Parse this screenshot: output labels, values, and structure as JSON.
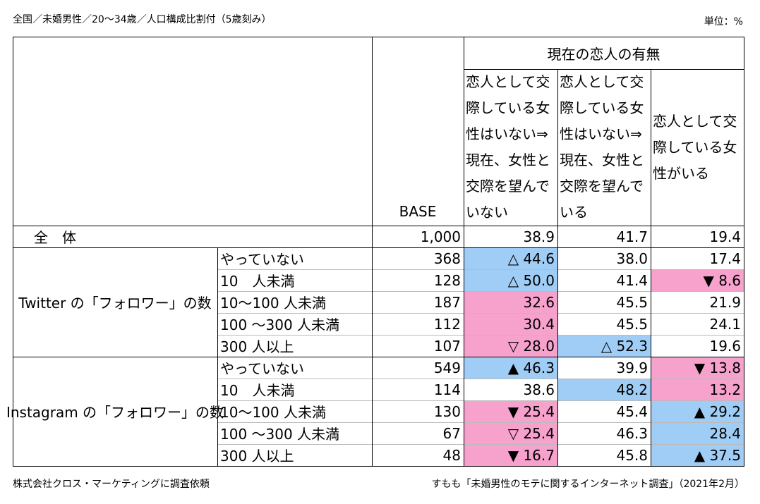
{
  "header": {
    "left": "全国／未婚男性／20～34歳／人口構成比割付（5歳刻み）",
    "right": "単位：%"
  },
  "table": {
    "group_header": "現在の恋人の有無",
    "columns": [
      "BASE",
      "恋人として交際している女性はいない⇒現在、女性と交際を望んでいない",
      "恋人として交際している女性はいない⇒現在、女性と交際を望んでいる",
      "恋人として交際している女性がいる"
    ],
    "total": {
      "label": "全　体",
      "base": "1,000",
      "cells": [
        {
          "text": "38.9"
        },
        {
          "text": "41.7"
        },
        {
          "text": "19.4"
        }
      ]
    },
    "groups": [
      {
        "label": "Twitter の「フォロワー」の数",
        "rows": [
          {
            "label": "やっていない",
            "base": "368",
            "cells": [
              {
                "text": "△ 44.6",
                "fill": "#a0cdf5"
              },
              {
                "text": "38.0"
              },
              {
                "text": "17.4"
              }
            ]
          },
          {
            "label": "10　人未満",
            "base": "128",
            "cells": [
              {
                "text": "△ 50.0",
                "fill": "#a0cdf5"
              },
              {
                "text": "41.4"
              },
              {
                "text": "▼ 8.6",
                "fill": "#f7a1cd"
              }
            ]
          },
          {
            "label": "10～100 人未満",
            "base": "187",
            "cells": [
              {
                "text": "32.6",
                "fill": "#f7a1cd"
              },
              {
                "text": "45.5"
              },
              {
                "text": "21.9"
              }
            ]
          },
          {
            "label": "100 ～300 人未満",
            "base": "112",
            "cells": [
              {
                "text": "30.4",
                "fill": "#f7a1cd"
              },
              {
                "text": "45.5"
              },
              {
                "text": "24.1"
              }
            ]
          },
          {
            "label": "300 人以上",
            "base": "107",
            "cells": [
              {
                "text": "▽ 28.0",
                "fill": "#f7a1cd"
              },
              {
                "text": "△ 52.3",
                "fill": "#a0cdf5"
              },
              {
                "text": "19.6"
              }
            ]
          }
        ]
      },
      {
        "label": "Instagram の「フォロワー」の数",
        "rows": [
          {
            "label": "やっていない",
            "base": "549",
            "cells": [
              {
                "text": "▲ 46.3",
                "fill": "#a0cdf5"
              },
              {
                "text": "39.9"
              },
              {
                "text": "▼ 13.8",
                "fill": "#f7a1cd"
              }
            ]
          },
          {
            "label": "10　人未満",
            "base": "114",
            "cells": [
              {
                "text": "38.6"
              },
              {
                "text": "48.2",
                "fill": "#a0cdf5"
              },
              {
                "text": "13.2",
                "fill": "#f7a1cd"
              }
            ]
          },
          {
            "label": "10～100 人未満",
            "base": "130",
            "cells": [
              {
                "text": "▼ 25.4",
                "fill": "#f7a1cd"
              },
              {
                "text": "45.4"
              },
              {
                "text": "▲ 29.2",
                "fill": "#a0cdf5"
              }
            ]
          },
          {
            "label": "100 ～300 人未満",
            "base": "67",
            "cells": [
              {
                "text": "▽ 25.4",
                "fill": "#f7a1cd"
              },
              {
                "text": "46.3"
              },
              {
                "text": "28.4",
                "fill": "#a0cdf5"
              }
            ]
          },
          {
            "label": "300 人以上",
            "base": "48",
            "cells": [
              {
                "text": "▼ 16.7",
                "fill": "#f7a1cd"
              },
              {
                "text": "45.8"
              },
              {
                "text": "▲ 37.5",
                "fill": "#a0cdf5"
              }
            ]
          }
        ]
      }
    ]
  },
  "footer": {
    "left": "株式会社クロス・マーケティングに調査依頼",
    "right": "すもも「未婚男性のモテに関するインターネット調査」（2021年2月）"
  }
}
